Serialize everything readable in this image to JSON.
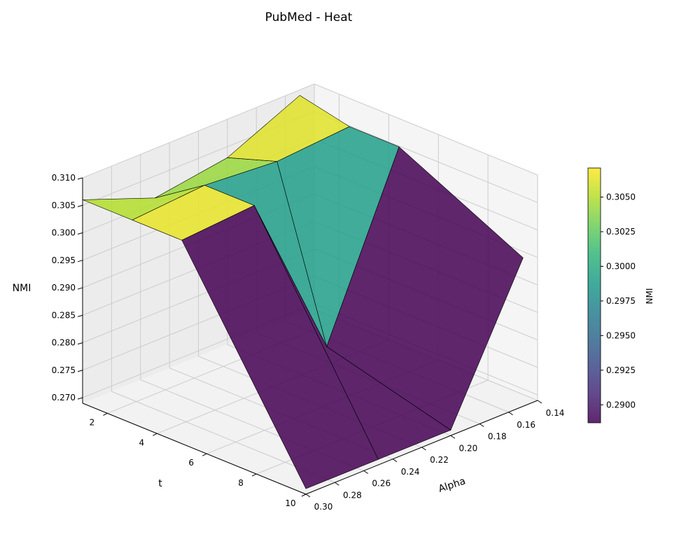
{
  "chart_data": {
    "type": "surface3d",
    "title": "PubMed - Heat",
    "xlabel": "t",
    "ylabel": "Alpha",
    "zlabel": "NMI",
    "colorbar_label": "NMI",
    "colormap": "viridis",
    "t_values": [
      1,
      3,
      5,
      10
    ],
    "alpha_values": [
      0.15,
      0.2,
      0.25,
      0.3
    ],
    "nmi_grid": [
      [
        0.309,
        0.303,
        0.301,
        0.306
      ],
      [
        0.307,
        0.306,
        0.307,
        0.306
      ],
      [
        0.307,
        0.276,
        0.307,
        0.306
      ],
      [
        0.296,
        0.27,
        0.27,
        0.27
      ]
    ],
    "x_ticks": [
      "2",
      "4",
      "6",
      "8",
      "10"
    ],
    "y_ticks": [
      "0.14",
      "0.16",
      "0.18",
      "0.20",
      "0.22",
      "0.24",
      "0.26",
      "0.28",
      "0.30"
    ],
    "z_ticks": [
      "0.270",
      "0.275",
      "0.280",
      "0.285",
      "0.290",
      "0.295",
      "0.300",
      "0.305",
      "0.310"
    ],
    "colorbar_ticks": [
      "0.2900",
      "0.2925",
      "0.2950",
      "0.2975",
      "0.3000",
      "0.3025",
      "0.3050"
    ],
    "xlim": [
      1,
      10
    ],
    "ylim": [
      0.14,
      0.3
    ],
    "zlim": [
      0.269,
      0.31
    ],
    "clim": [
      0.2887,
      0.3071
    ],
    "colors": {
      "pane": "#f2f2f2",
      "grid": "#cccccc",
      "edge": "#000000",
      "viridis": [
        "#440154",
        "#482878",
        "#3e4989",
        "#31688e",
        "#26828e",
        "#1f9e89",
        "#35b779",
        "#6ece58",
        "#b5de2b",
        "#fde725"
      ]
    }
  }
}
